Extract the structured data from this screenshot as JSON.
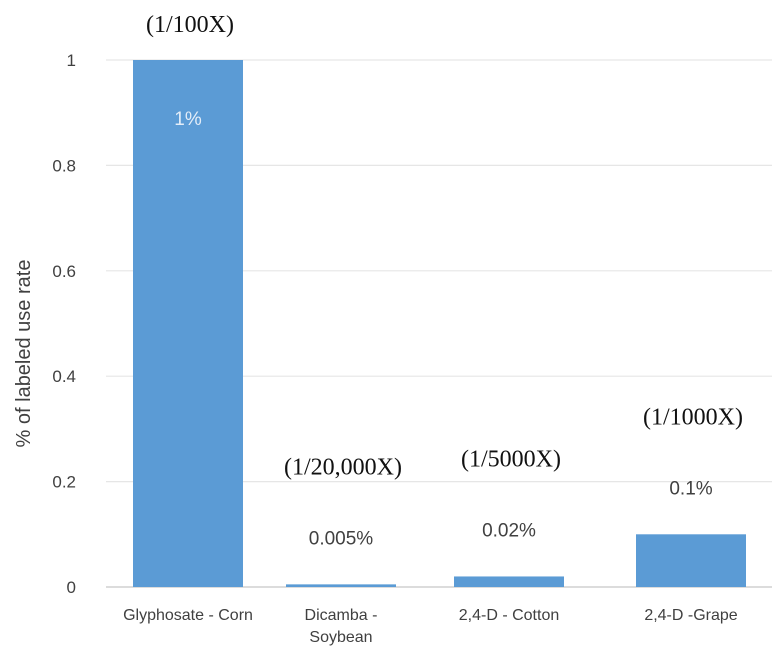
{
  "chart_data": {
    "type": "bar",
    "categories": [
      "Glyphosate - Corn",
      "Dicamba - Soybean",
      "2,4-D - Cotton",
      "2,4-D -Grape"
    ],
    "category_lines": [
      [
        "Glyphosate - Corn"
      ],
      [
        "Dicamba -",
        "Soybean"
      ],
      [
        "2,4-D - Cotton"
      ],
      [
        "2,4-D -Grape"
      ]
    ],
    "values": [
      1,
      0.005,
      0.02,
      0.1
    ],
    "data_labels": [
      "1%",
      "0.005%",
      "0.02%",
      "0.1%"
    ],
    "ratio_labels": [
      "(1/100X)",
      "(1/20,000X)",
      "(1/5000X)",
      "(1/1000X)"
    ],
    "ylabel": "% of labeled use rate",
    "ylim": [
      0,
      1
    ],
    "yticks": [
      0,
      0.2,
      0.4,
      0.6,
      0.8,
      1
    ],
    "ytick_labels": [
      "0",
      "0.2",
      "0.4",
      "0.6",
      "0.8",
      "1"
    ],
    "grid": true,
    "bar_color": "#5b9bd5",
    "grid_color": "#e6e6e6",
    "inside_label_color": "#e3edf8",
    "outside_label_color": "#404040"
  }
}
